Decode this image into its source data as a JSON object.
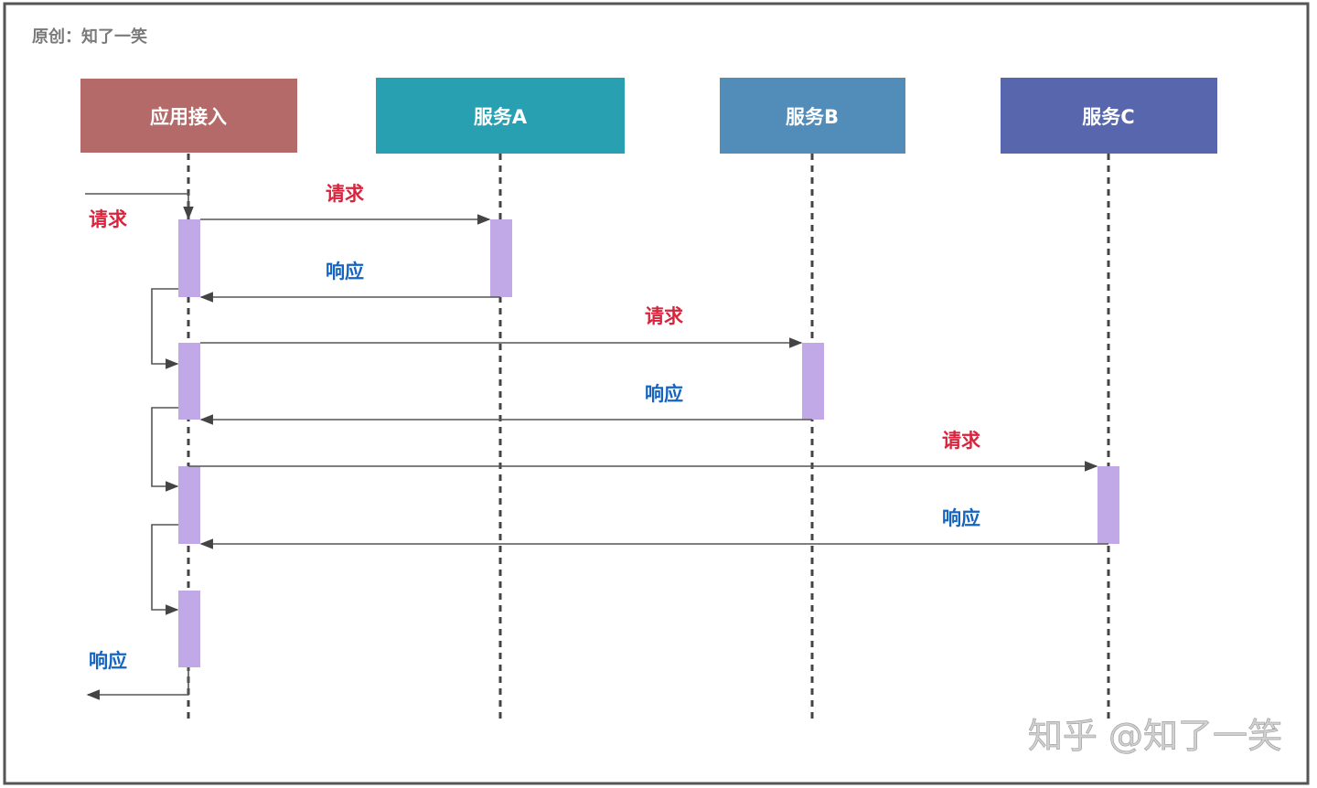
{
  "credit": "原创：知了一笑",
  "watermark": "知乎 @知了一笑",
  "participants": [
    {
      "name": "应用接入",
      "color": "#b56a6a"
    },
    {
      "name": "服务A",
      "color": "#29a0b1"
    },
    {
      "name": "服务B",
      "color": "#528cb8"
    },
    {
      "name": "服务C",
      "color": "#5766ad"
    }
  ],
  "activation_color": "#c0a9e6",
  "messages": [
    {
      "label": "请求",
      "from": "外部",
      "to": "应用接入",
      "kind": "request"
    },
    {
      "label": "请求",
      "from": "应用接入",
      "to": "服务A",
      "kind": "request"
    },
    {
      "label": "响应",
      "from": "服务A",
      "to": "应用接入",
      "kind": "response"
    },
    {
      "label": "请求",
      "from": "应用接入",
      "to": "服务B",
      "kind": "request"
    },
    {
      "label": "响应",
      "from": "服务B",
      "to": "应用接入",
      "kind": "response"
    },
    {
      "label": "请求",
      "from": "应用接入",
      "to": "服务C",
      "kind": "request"
    },
    {
      "label": "响应",
      "from": "服务C",
      "to": "应用接入",
      "kind": "response"
    },
    {
      "label": "响应",
      "from": "应用接入",
      "to": "外部",
      "kind": "response"
    }
  ],
  "colors": {
    "request": "#d8243c",
    "response": "#1565c0"
  }
}
